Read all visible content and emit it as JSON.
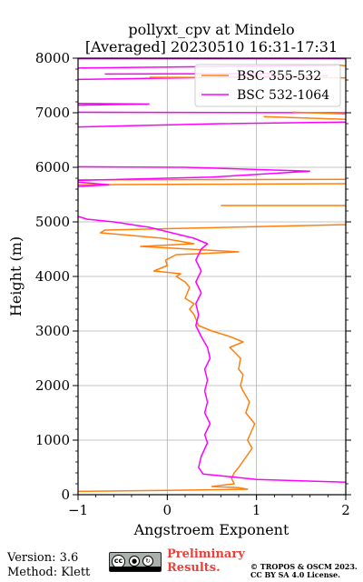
{
  "chart_data": {
    "type": "line",
    "title_line1": "pollyxt_cpv at Mindelo",
    "title_line2": "[Averaged] 20230510 16:31-17:31",
    "xlabel": "Angstroem Exponent",
    "ylabel": "Height (m)",
    "xlim": [
      -1,
      2
    ],
    "ylim": [
      0,
      8000
    ],
    "xticks": [
      -1,
      0,
      1,
      2
    ],
    "yticks": [
      0,
      1000,
      2000,
      3000,
      4000,
      5000,
      6000,
      7000,
      8000
    ],
    "grid": true,
    "legend_position": "top-right",
    "series": [
      {
        "name": "BSC 355-532",
        "color": "#ff7f0e",
        "points": [
          [
            -1.0,
            60
          ],
          [
            0.0,
            80
          ],
          [
            0.9,
            100
          ],
          [
            0.8,
            130
          ],
          [
            0.5,
            150
          ],
          [
            0.75,
            200
          ],
          [
            0.72,
            300
          ],
          [
            0.75,
            400
          ],
          [
            0.8,
            500
          ],
          [
            0.95,
            850
          ],
          [
            0.9,
            1000
          ],
          [
            0.98,
            1300
          ],
          [
            0.88,
            1500
          ],
          [
            0.92,
            1700
          ],
          [
            0.85,
            1900
          ],
          [
            0.82,
            2000
          ],
          [
            0.85,
            2200
          ],
          [
            0.8,
            2300
          ],
          [
            0.82,
            2500
          ],
          [
            0.7,
            2700
          ],
          [
            0.85,
            2800
          ],
          [
            0.7,
            2900
          ],
          [
            0.5,
            3000
          ],
          [
            0.35,
            3100
          ],
          [
            0.3,
            3300
          ],
          [
            0.25,
            3400
          ],
          [
            0.3,
            3500
          ],
          [
            0.2,
            3600
          ],
          [
            0.25,
            3800
          ],
          [
            0.2,
            3900
          ],
          [
            0.1,
            4000
          ],
          [
            0.15,
            4050
          ],
          [
            -0.15,
            4100
          ],
          [
            0.0,
            4200
          ],
          [
            -0.02,
            4300
          ],
          [
            0.1,
            4400
          ],
          [
            0.8,
            4450
          ],
          [
            -0.3,
            4550
          ],
          [
            0.3,
            4600
          ],
          [
            -0.05,
            4700
          ],
          [
            -0.75,
            4800
          ],
          [
            -0.7,
            4850
          ],
          [
            0.1,
            4880
          ],
          [
            2.0,
            4950
          ]
        ]
      },
      {
        "name": "BSC 532-1064",
        "color": "#ff00ff",
        "points": [
          [
            2.0,
            230
          ],
          [
            1.0,
            280
          ],
          [
            0.4,
            380
          ],
          [
            0.35,
            500
          ],
          [
            0.38,
            700
          ],
          [
            0.45,
            950
          ],
          [
            0.42,
            1100
          ],
          [
            0.48,
            1300
          ],
          [
            0.42,
            1500
          ],
          [
            0.45,
            1700
          ],
          [
            0.42,
            1900
          ],
          [
            0.45,
            2100
          ],
          [
            0.42,
            2300
          ],
          [
            0.48,
            2500
          ],
          [
            0.45,
            2700
          ],
          [
            0.38,
            2900
          ],
          [
            0.32,
            3100
          ],
          [
            0.35,
            3300
          ],
          [
            0.32,
            3500
          ],
          [
            0.38,
            3700
          ],
          [
            0.32,
            3900
          ],
          [
            0.38,
            4100
          ],
          [
            0.32,
            4300
          ],
          [
            0.38,
            4500
          ],
          [
            0.45,
            4600
          ],
          [
            0.3,
            4700
          ],
          [
            -0.2,
            4900
          ],
          [
            -0.6,
            5000
          ],
          [
            -0.9,
            5050
          ],
          [
            -1.0,
            5100
          ]
        ]
      }
    ]
  },
  "footer": {
    "version": "Version: 3.6",
    "method": "Method: Klett",
    "preliminary_line1": "Preliminary",
    "preliminary_line2": "Results.",
    "copyright_line1": "© TROPOS & OSCM 2023.",
    "copyright_line2": "CC BY SA 4.0 License.",
    "badge_text": "cc"
  },
  "icons": {
    "license_badge": "creative-commons-by-sa-icon"
  }
}
